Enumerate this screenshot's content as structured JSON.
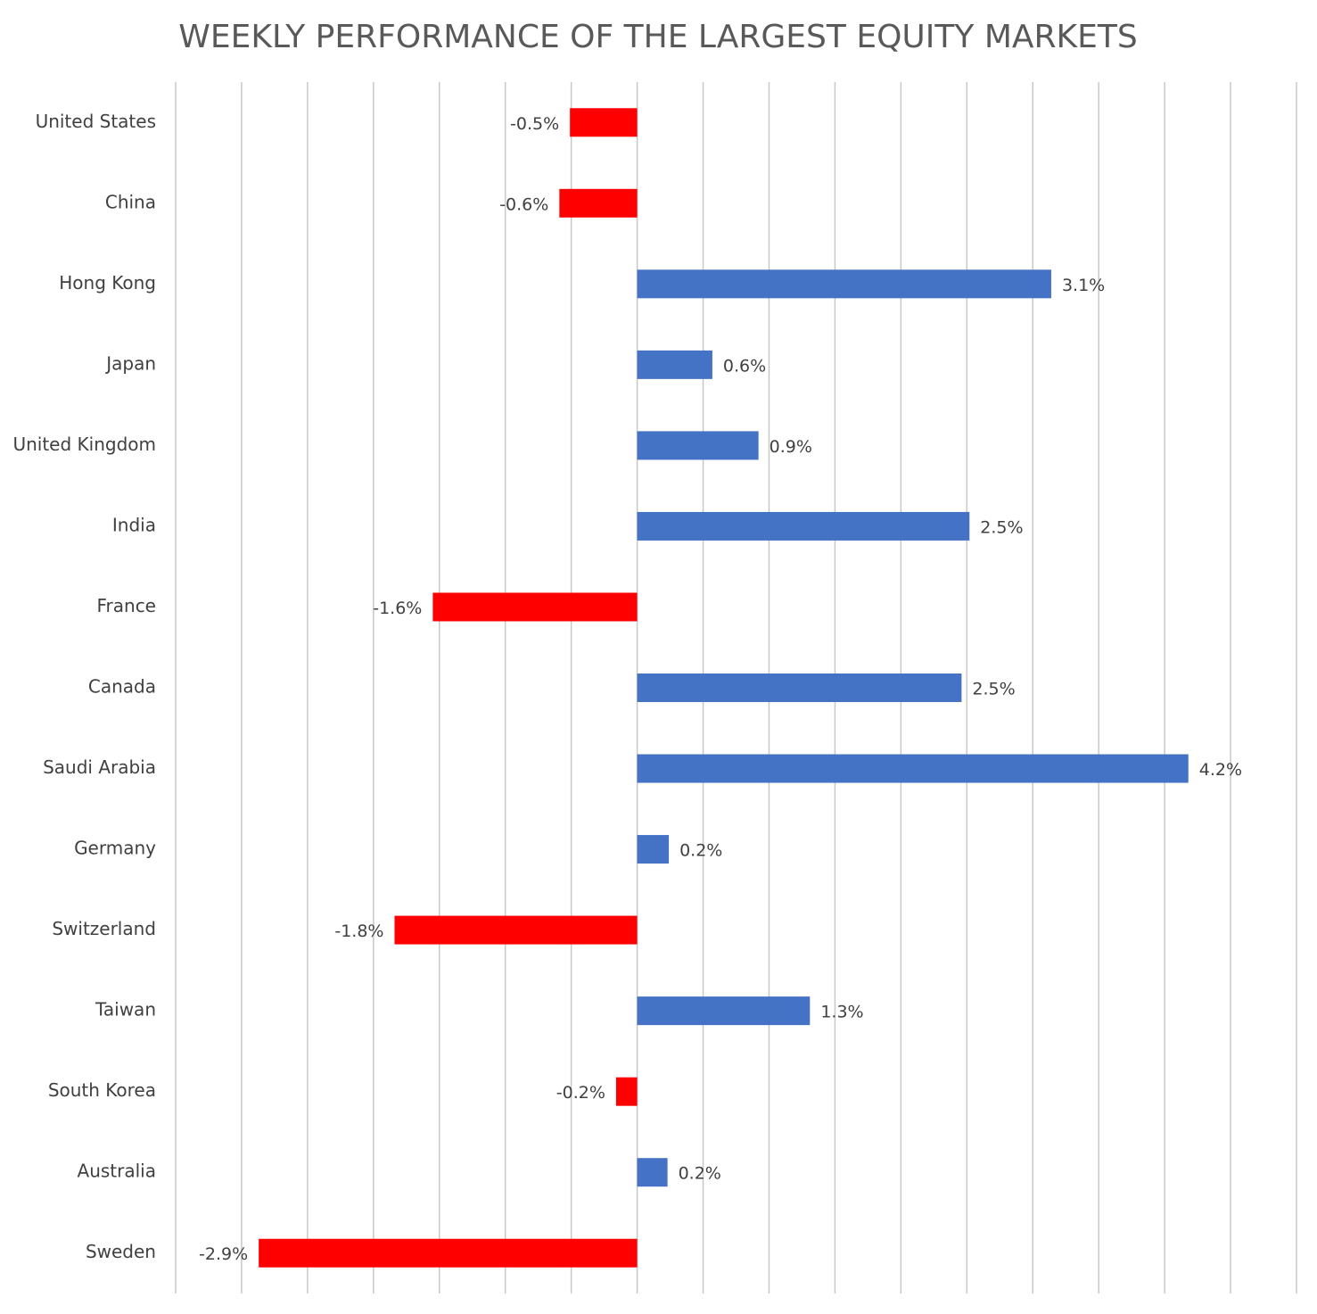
{
  "chart_data": {
    "type": "bar",
    "orientation": "horizontal",
    "title": "WEEKLY PERFORMANCE OF THE LARGEST EQUITY MARKETS",
    "categories": [
      "United States",
      "China",
      "Hong Kong",
      "Japan",
      "United Kingdom",
      "India",
      "France",
      "Canada",
      "Saudi Arabia",
      "Germany",
      "Switzerland",
      "Taiwan",
      "South Korea",
      "Australia",
      "Sweden"
    ],
    "values": [
      -0.51,
      -0.59,
      3.14,
      0.57,
      0.92,
      2.52,
      -1.55,
      2.46,
      4.18,
      0.24,
      -1.84,
      1.31,
      -0.16,
      0.23,
      -2.87
    ],
    "value_labels": [
      "-0.5%",
      "-0.6%",
      "3.1%",
      "0.6%",
      "0.9%",
      "2.5%",
      "-1.6%",
      "2.5%",
      "4.2%",
      "0.2%",
      "-1.8%",
      "1.3%",
      "-0.2%",
      "0.2%",
      "-2.9%"
    ],
    "positive_color": "#4472c4",
    "negative_color": "#ff0000",
    "xlim": [
      -3.5,
      5.0
    ],
    "xticks": [
      -3.5,
      -3.0,
      -2.5,
      -2.0,
      -1.5,
      -1.0,
      -0.5,
      0,
      0.5,
      1.0,
      1.5,
      2.0,
      2.5,
      3.0,
      3.5,
      4.0,
      4.5,
      5.0
    ],
    "grid": true
  }
}
